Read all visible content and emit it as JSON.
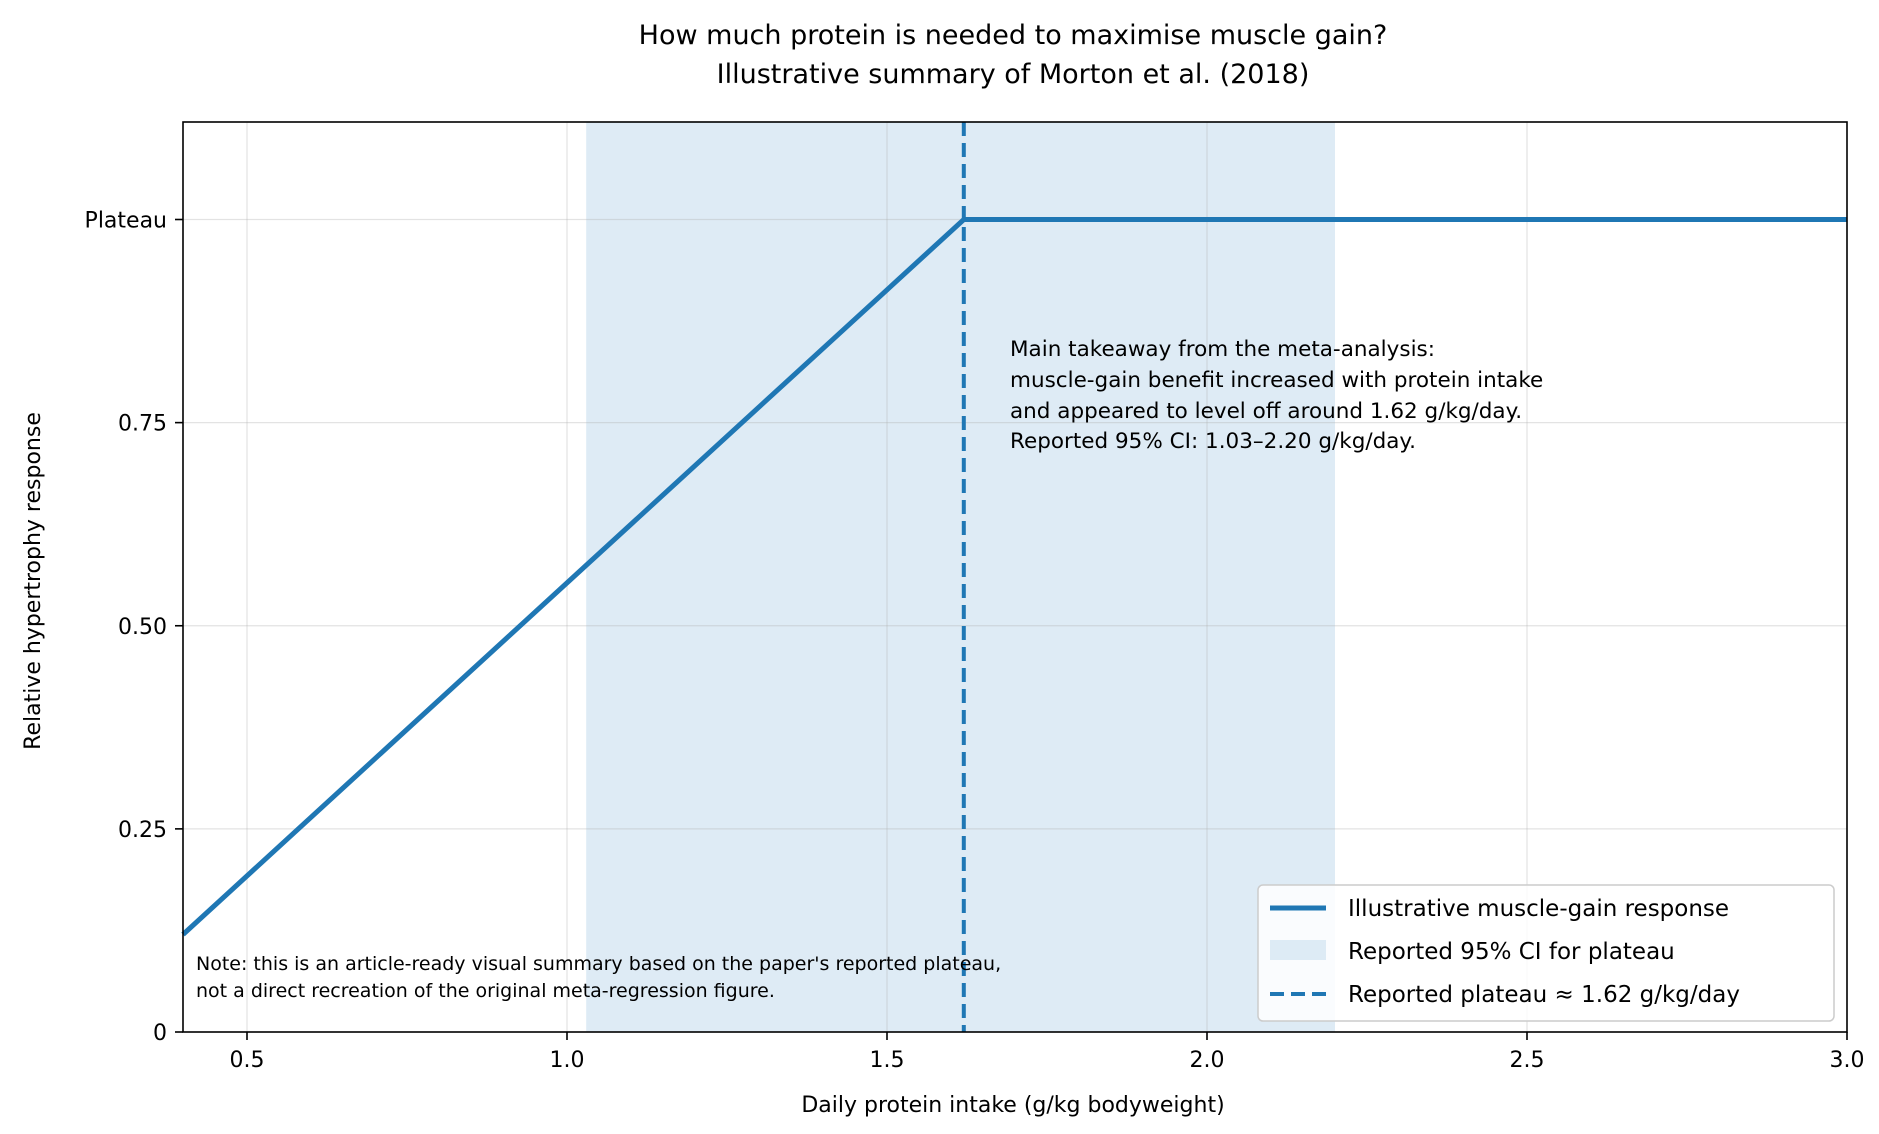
{
  "chart_data": {
    "type": "line",
    "title": "How much protein is needed to maximise muscle gain?",
    "subtitle": "Illustrative summary of Morton et al. (2018)",
    "xlabel": "Daily protein intake (g/kg bodyweight)",
    "ylabel": "Relative hypertrophy response",
    "xlim": [
      0.4,
      3.0
    ],
    "ylim": [
      0,
      1.12
    ],
    "xticks": [
      0.5,
      1.0,
      1.5,
      2.0,
      2.5,
      3.0
    ],
    "xtick_labels": [
      "0.5",
      "1.0",
      "1.5",
      "2.0",
      "2.5",
      "3.0"
    ],
    "yticks": [
      0,
      0.25,
      0.5,
      0.75,
      1.0
    ],
    "ytick_labels": [
      "0",
      "0.25",
      "0.50",
      "0.75",
      "Plateau"
    ],
    "grid": true,
    "legend_position": "bottom-right",
    "series": [
      {
        "name": "Illustrative muscle-gain response",
        "x": [
          0.4,
          1.62,
          3.0
        ],
        "y": [
          0.12,
          1.0,
          1.0
        ],
        "color": "#1f77b4"
      }
    ],
    "ci_band": {
      "name": "Reported 95% CI for plateau",
      "x_start": 1.03,
      "x_end": 2.2,
      "color": "#d6e6f3"
    },
    "plateau_line": {
      "name": "Reported plateau ≈ 1.62 g/kg/day",
      "x": 1.62,
      "color": "#1f77b4"
    },
    "annotation": [
      "Main takeaway from the meta-analysis:",
      "muscle-gain benefit increased with protein intake",
      "and appeared to level off around 1.62 g/kg/day.",
      "Reported 95% CI: 1.03–2.20 g/kg/day."
    ],
    "note": [
      "Note: this is an article-ready visual summary based on the paper's reported plateau,",
      "not a direct recreation of the original meta-regression figure."
    ]
  }
}
